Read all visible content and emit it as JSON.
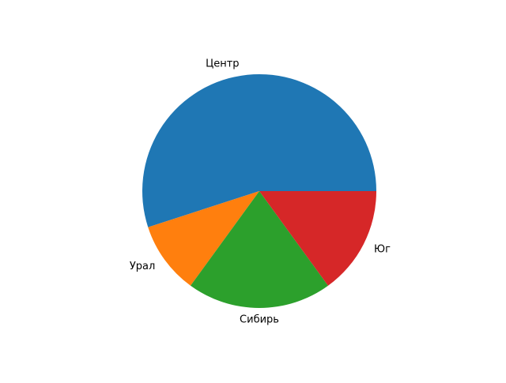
{
  "chart_data": {
    "type": "pie",
    "title": "",
    "labels": [
      "Центр",
      "Урал",
      "Сибирь",
      "Юг"
    ],
    "values": [
      55,
      10,
      20,
      15
    ],
    "colors": [
      "#1f77b4",
      "#ff7f0e",
      "#2ca02c",
      "#d62728"
    ],
    "start_angle": 0,
    "direction": "counterclockwise"
  }
}
